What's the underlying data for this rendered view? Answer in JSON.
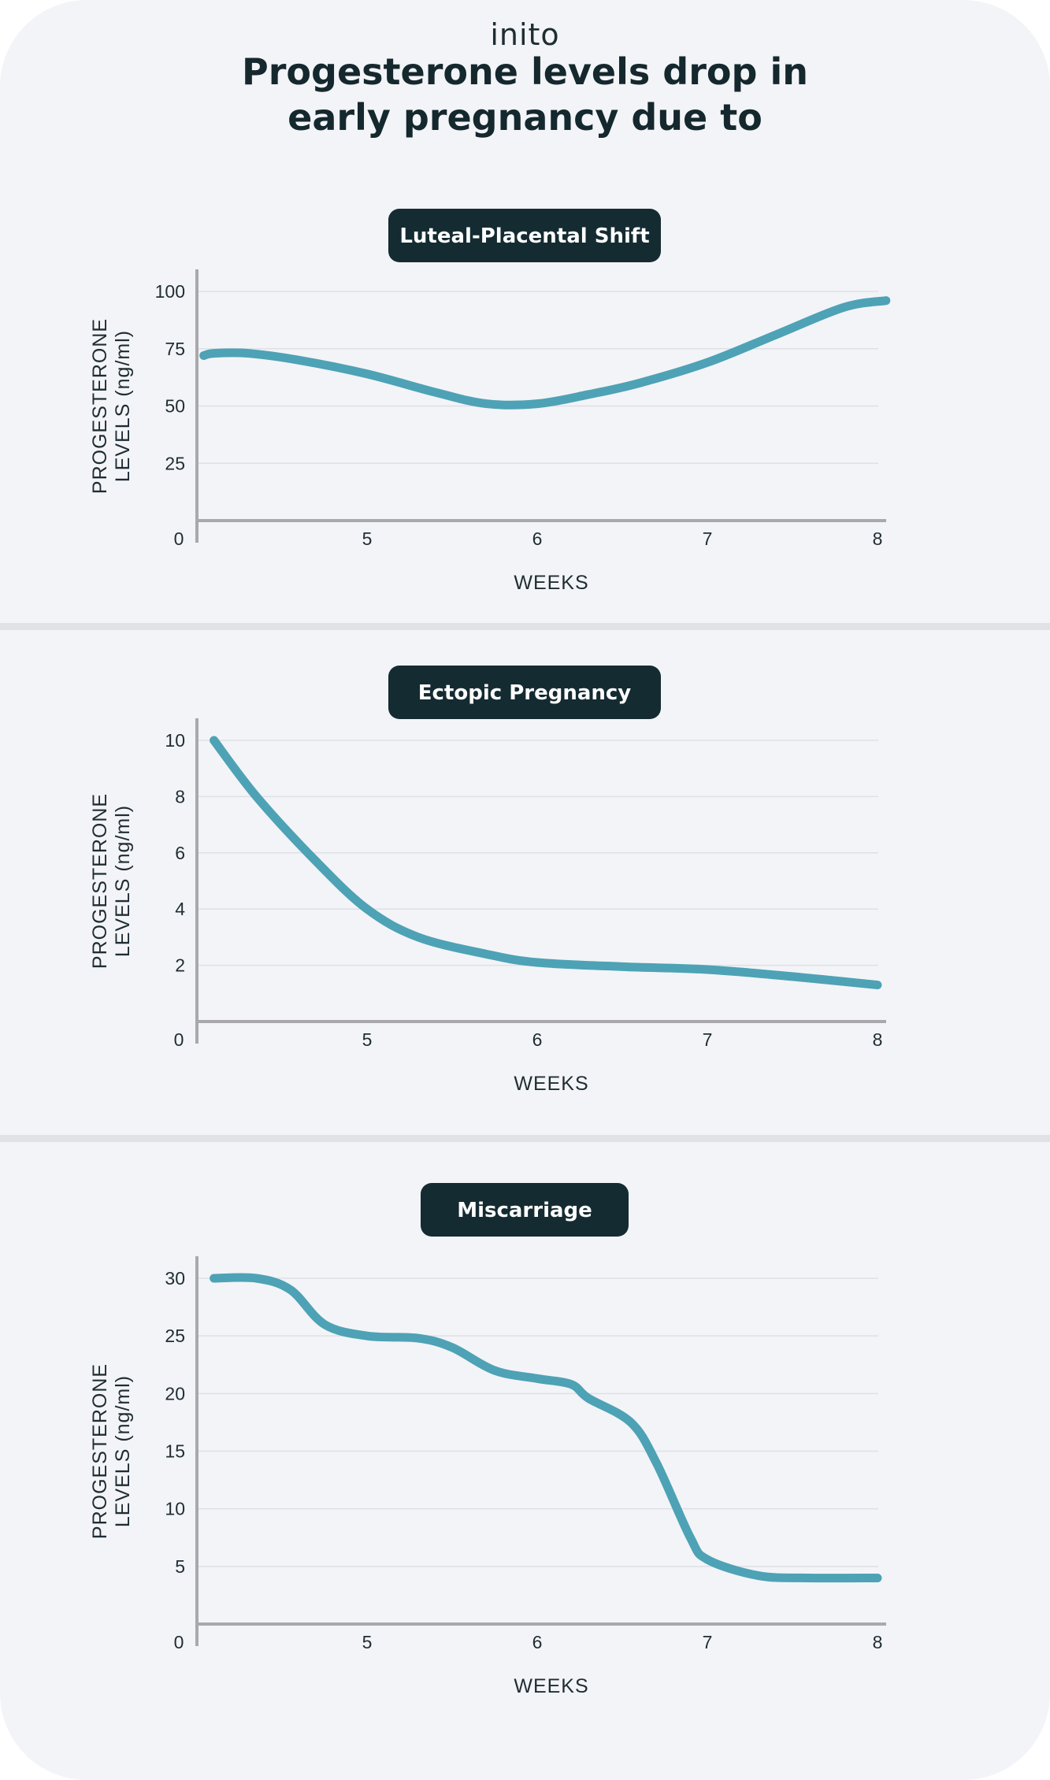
{
  "header": {
    "logo": "inito",
    "title_line1": "Progesterone levels drop in",
    "title_line2": "early pregnancy due to"
  },
  "colors": {
    "background": "#f3f4f8",
    "pill": "#142b31",
    "line": "#4ea2b5",
    "axis": "#a9a9ad",
    "grid": "#dfe0e6"
  },
  "chart_data": [
    {
      "type": "line",
      "title": "Luteal-Placental Shift",
      "xlabel": "WEEKS",
      "ylabel_line1": "PROGESTERONE",
      "ylabel_line2": "LEVELS (ng/ml)",
      "origin_label": "0",
      "x_ticks": [
        5,
        6,
        7,
        8
      ],
      "y_ticks": [
        25,
        50,
        75,
        100
      ],
      "xlim": [
        4.03,
        8.1
      ],
      "ylim": [
        0,
        100
      ],
      "grid": true,
      "x": [
        4.04,
        4.1,
        4.3,
        4.6,
        5.0,
        5.4,
        5.7,
        6.0,
        6.3,
        6.6,
        7.0,
        7.4,
        7.8,
        8.05
      ],
      "y": [
        72,
        73,
        73,
        70,
        64,
        56,
        51,
        51,
        55,
        60,
        69,
        81,
        93,
        96
      ]
    },
    {
      "type": "line",
      "title": "Ectopic Pregnancy",
      "xlabel": "WEEKS",
      "ylabel_line1": "PROGESTERONE",
      "ylabel_line2": "LEVELS (ng/ml)",
      "origin_label": "0",
      "x_ticks": [
        5,
        6,
        7,
        8
      ],
      "y_ticks": [
        2,
        4,
        6,
        8,
        10
      ],
      "xlim": [
        4.03,
        8.1
      ],
      "ylim": [
        0,
        10
      ],
      "grid": true,
      "x": [
        4.1,
        4.35,
        4.7,
        5.0,
        5.3,
        5.7,
        6.0,
        6.5,
        7.0,
        7.5,
        8.0
      ],
      "y": [
        10.0,
        8.0,
        5.7,
        4.0,
        3.0,
        2.4,
        2.1,
        1.95,
        1.85,
        1.6,
        1.3
      ]
    },
    {
      "type": "line",
      "title": "Miscarriage",
      "xlabel": "WEEKS",
      "ylabel_line1": "PROGESTERONE",
      "ylabel_line2": "LEVELS (ng/ml)",
      "origin_label": "0",
      "x_ticks": [
        5,
        6,
        7,
        8
      ],
      "y_ticks": [
        5,
        10,
        15,
        20,
        25,
        30
      ],
      "xlim": [
        4.03,
        8.1
      ],
      "ylim": [
        0,
        30
      ],
      "grid": true,
      "x": [
        4.1,
        4.35,
        4.55,
        4.75,
        5.0,
        5.3,
        5.5,
        5.75,
        6.0,
        6.2,
        6.3,
        6.55,
        6.7,
        6.9,
        7.0,
        7.3,
        7.6,
        8.0
      ],
      "y": [
        30.0,
        30.0,
        29.0,
        26.0,
        25.0,
        24.8,
        24.0,
        22.0,
        21.3,
        20.8,
        19.6,
        17.5,
        14.0,
        7.5,
        5.6,
        4.2,
        4.0,
        4.0
      ]
    }
  ]
}
